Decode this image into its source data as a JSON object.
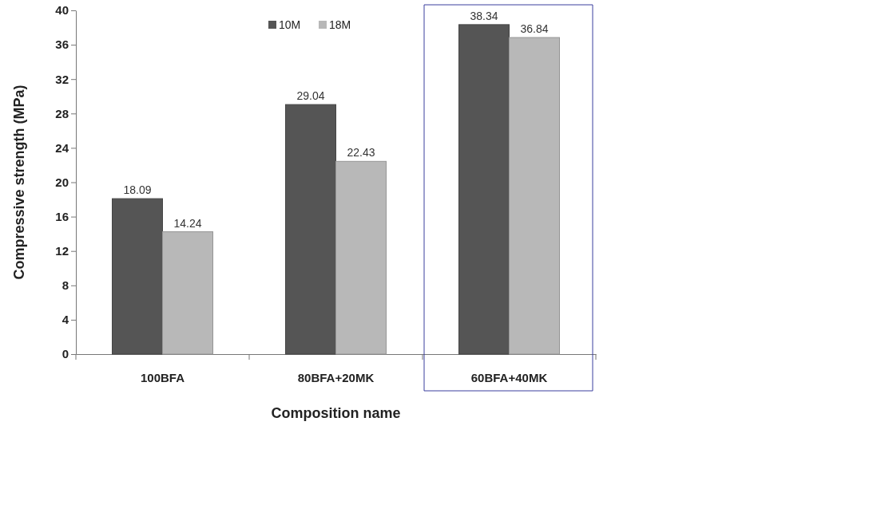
{
  "chart_data": {
    "type": "bar",
    "xlabel": "Composition name",
    "ylabel": "Compressive strength (MPa)",
    "categories": [
      "100BFA",
      "80BFA+20MK",
      "60BFA+40MK"
    ],
    "series": [
      {
        "name": "10M",
        "color": "#555555",
        "values": [
          18.09,
          29.04,
          38.34
        ]
      },
      {
        "name": "18M",
        "color": "#b8b8b8",
        "values": [
          14.24,
          22.43,
          36.84
        ]
      }
    ],
    "ylim": [
      0,
      40
    ],
    "yticks": [
      0,
      4,
      8,
      12,
      16,
      20,
      24,
      28,
      32,
      36,
      40
    ],
    "data_labels": true,
    "legend": "top",
    "grid": false
  }
}
